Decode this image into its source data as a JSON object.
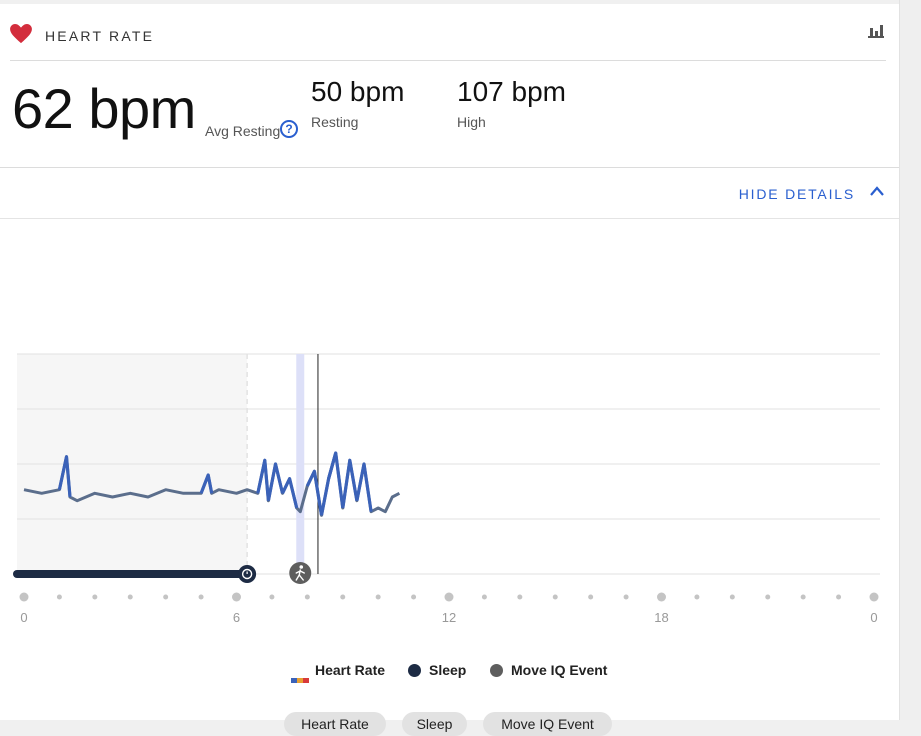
{
  "header": {
    "title": "HEART RATE",
    "icon": "heart-icon",
    "reports_icon": "bar-chart-icon"
  },
  "stats": {
    "avg_resting_value": "62 bpm",
    "avg_resting_label": "Avg Resting",
    "resting_value": "50 bpm",
    "resting_label": "Resting",
    "high_value": "107 bpm",
    "high_label": "High"
  },
  "details": {
    "toggle_label": "HIDE DETAILS"
  },
  "chart_data": {
    "type": "line",
    "x_ticks": [
      "0",
      "6",
      "12",
      "18",
      "0"
    ],
    "xlim": [
      0,
      24
    ],
    "grid": true,
    "sleep_range": [
      0,
      6.3
    ],
    "move_iq_event_at": 7.8,
    "current_time_at": 8.3,
    "x": [
      0.0,
      0.5,
      1.0,
      1.2,
      1.3,
      1.5,
      2.0,
      2.5,
      3.0,
      3.5,
      4.0,
      4.5,
      5.0,
      5.2,
      5.3,
      5.5,
      6.0,
      6.3,
      6.6,
      6.8,
      6.9,
      7.1,
      7.3,
      7.5,
      7.7,
      7.8,
      8.0,
      8.2,
      8.4,
      8.6,
      8.8,
      9.0,
      9.2,
      9.4,
      9.6,
      9.8,
      10.0,
      10.2,
      10.4,
      10.6
    ],
    "values": [
      63,
      62,
      63,
      72,
      61,
      60,
      62,
      61,
      62,
      61,
      63,
      62,
      62,
      67,
      62,
      63,
      62,
      63,
      62,
      71,
      60,
      70,
      62,
      66,
      58,
      57,
      64,
      68,
      56,
      66,
      73,
      58,
      71,
      60,
      70,
      57,
      58,
      57,
      61,
      62
    ],
    "colors": {
      "heart_rate": "#5b6e8c",
      "heart_rate_peak": "#3b62b8",
      "sleep": "#1d2b44",
      "move_iq": "#5e5e5e"
    }
  },
  "legend": {
    "heart_rate": "Heart Rate",
    "sleep": "Sleep",
    "move_iq": "Move IQ Event"
  },
  "filters": [
    "Heart Rate",
    "Sleep",
    "Move IQ Event"
  ]
}
